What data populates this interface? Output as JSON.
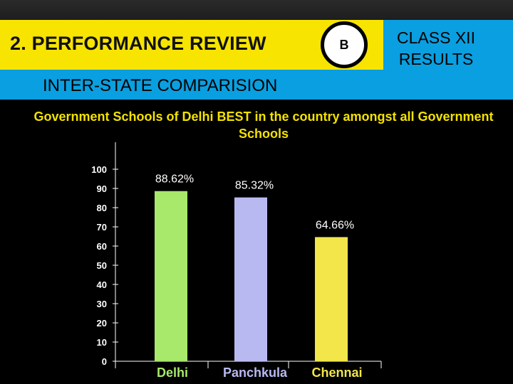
{
  "slide": {
    "section_title": "2. PERFORMANCE REVIEW",
    "badge": "B",
    "class_label": "CLASS XII RESULTS",
    "subtitle": "INTER-STATE COMPARISION"
  },
  "chart_data": {
    "type": "bar",
    "title": "Government Schools of Delhi BEST in the country amongst all Government Schools",
    "categories": [
      "Delhi",
      "Panchkula",
      "Chennai"
    ],
    "values": [
      88.62,
      85.32,
      64.66
    ],
    "data_labels": [
      "88.62%",
      "85.32%",
      "64.66%"
    ],
    "bar_colors": [
      "#a8e86a",
      "#b9b9f2",
      "#f2e64a"
    ],
    "category_label_colors": [
      "#a8e86a",
      "#b9b9f2",
      "#f2e64a"
    ],
    "ylim": [
      0,
      100
    ],
    "yticks": [
      0,
      10,
      20,
      30,
      40,
      50,
      60,
      70,
      80,
      90,
      100
    ],
    "xlabel": "",
    "ylabel": "",
    "grid": false,
    "legend": "none"
  }
}
